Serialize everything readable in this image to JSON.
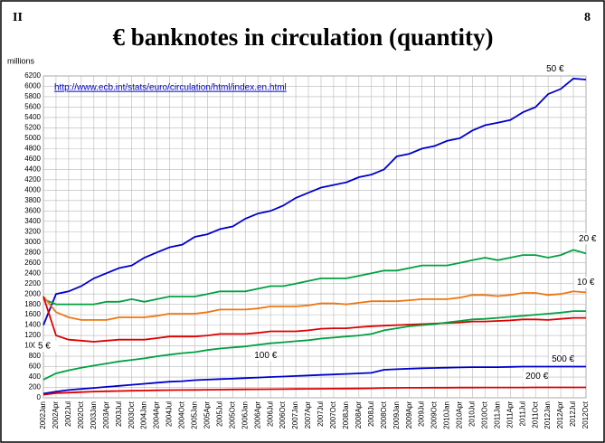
{
  "page": {
    "left_corner": "II",
    "right_corner": "8"
  },
  "chart_data": {
    "type": "line",
    "title": "€ banknotes in circulation (quantity)",
    "y_label": "millions",
    "annotation": "http://www.ecb.int/stats/euro/circulation/html/index.en.html",
    "categories": [
      "2002Jan",
      "2002Apr",
      "2002Jul",
      "2002Oct",
      "2003Jan",
      "2003Apr",
      "2003Jul",
      "2003Oct",
      "2004Jan",
      "2004Apr",
      "2004Jul",
      "2004Oct",
      "2005Jan",
      "2005Apr",
      "2005Jul",
      "2005Oct",
      "2006Jan",
      "2006Apr",
      "2006Jul",
      "2006Oct",
      "2007Jan",
      "2007Apr",
      "2007Jul",
      "2007Oct",
      "2008Jan",
      "2008Apr",
      "2008Jul",
      "2008Oct",
      "2009Jan",
      "2009Apr",
      "2009Jul",
      "2009Oct",
      "2010Jan",
      "2010Apr",
      "2010Jul",
      "2010Oct",
      "2011Jan",
      "2011Apr",
      "2011Jul",
      "2011Oct",
      "2012Jan",
      "2012Apr",
      "2012Jul",
      "2012Oct"
    ],
    "ylim": [
      0,
      6200
    ],
    "yticks": [
      0,
      200,
      400,
      600,
      800,
      1000,
      1200,
      1400,
      1600,
      1800,
      2000,
      2200,
      2400,
      2600,
      2800,
      3000,
      3200,
      3400,
      3600,
      3800,
      4000,
      4200,
      4400,
      4600,
      4800,
      5000,
      5200,
      5400,
      5600,
      5800,
      6000,
      6200
    ],
    "grid": true,
    "series": [
      {
        "name": "50 €",
        "color": "#0000cc",
        "values": [
          1400,
          2000,
          2050,
          2150,
          2300,
          2400,
          2500,
          2550,
          2700,
          2800,
          2900,
          2950,
          3100,
          3150,
          3250,
          3300,
          3450,
          3550,
          3600,
          3700,
          3850,
          3950,
          4050,
          4100,
          4150,
          4250,
          4300,
          4400,
          4650,
          4700,
          4800,
          4850,
          4950,
          5000,
          5150,
          5250,
          5300,
          5350,
          5500,
          5600,
          5850,
          5950,
          6150,
          6130
        ]
      },
      {
        "name": "20 €",
        "color": "#00a040",
        "values": [
          1900,
          1800,
          1800,
          1800,
          1800,
          1850,
          1850,
          1900,
          1850,
          1900,
          1950,
          1950,
          1950,
          2000,
          2050,
          2050,
          2050,
          2100,
          2150,
          2150,
          2200,
          2250,
          2300,
          2300,
          2300,
          2350,
          2400,
          2450,
          2450,
          2500,
          2550,
          2550,
          2550,
          2600,
          2650,
          2700,
          2650,
          2700,
          2750,
          2750,
          2700,
          2750,
          2850,
          2780
        ]
      },
      {
        "name": "10 €",
        "color": "#ee7711",
        "values": [
          1950,
          1650,
          1550,
          1500,
          1500,
          1500,
          1550,
          1550,
          1550,
          1580,
          1620,
          1620,
          1620,
          1650,
          1700,
          1700,
          1700,
          1720,
          1760,
          1760,
          1760,
          1780,
          1820,
          1820,
          1800,
          1830,
          1860,
          1860,
          1860,
          1880,
          1900,
          1900,
          1900,
          1930,
          1980,
          1980,
          1960,
          1980,
          2020,
          2020,
          1980,
          2000,
          2050,
          2030
        ]
      },
      {
        "name": "5 €",
        "color": "#dd0000",
        "values": [
          1950,
          1200,
          1120,
          1100,
          1080,
          1100,
          1120,
          1120,
          1120,
          1150,
          1180,
          1180,
          1180,
          1200,
          1230,
          1230,
          1230,
          1250,
          1280,
          1280,
          1280,
          1300,
          1330,
          1340,
          1340,
          1360,
          1380,
          1390,
          1400,
          1410,
          1420,
          1430,
          1440,
          1450,
          1470,
          1470,
          1480,
          1490,
          1510,
          1510,
          1500,
          1520,
          1540,
          1540
        ]
      },
      {
        "name": "100 €",
        "color": "#00a040",
        "values": [
          350,
          470,
          530,
          580,
          620,
          660,
          700,
          730,
          760,
          800,
          830,
          860,
          880,
          920,
          950,
          970,
          990,
          1020,
          1050,
          1070,
          1090,
          1110,
          1140,
          1160,
          1180,
          1200,
          1230,
          1300,
          1340,
          1380,
          1400,
          1420,
          1450,
          1480,
          1510,
          1520,
          1540,
          1560,
          1580,
          1600,
          1620,
          1640,
          1670,
          1670
        ]
      },
      {
        "name": "500 €",
        "color": "#0000cc",
        "values": [
          80,
          120,
          150,
          170,
          190,
          210,
          230,
          250,
          270,
          290,
          310,
          320,
          340,
          350,
          360,
          370,
          380,
          390,
          400,
          410,
          420,
          430,
          440,
          450,
          460,
          470,
          480,
          540,
          550,
          560,
          570,
          575,
          580,
          585,
          590,
          590,
          590,
          595,
          600,
          600,
          600,
          600,
          600,
          600
        ]
      },
      {
        "name": "200 €",
        "color": "#dd0000",
        "values": [
          60,
          90,
          100,
          110,
          120,
          125,
          130,
          135,
          140,
          145,
          148,
          150,
          152,
          155,
          157,
          160,
          162,
          164,
          166,
          168,
          170,
          172,
          174,
          176,
          178,
          180,
          182,
          190,
          192,
          193,
          194,
          195,
          195,
          196,
          197,
          198,
          198,
          199,
          199,
          200,
          200,
          200,
          200,
          200
        ]
      }
    ]
  }
}
